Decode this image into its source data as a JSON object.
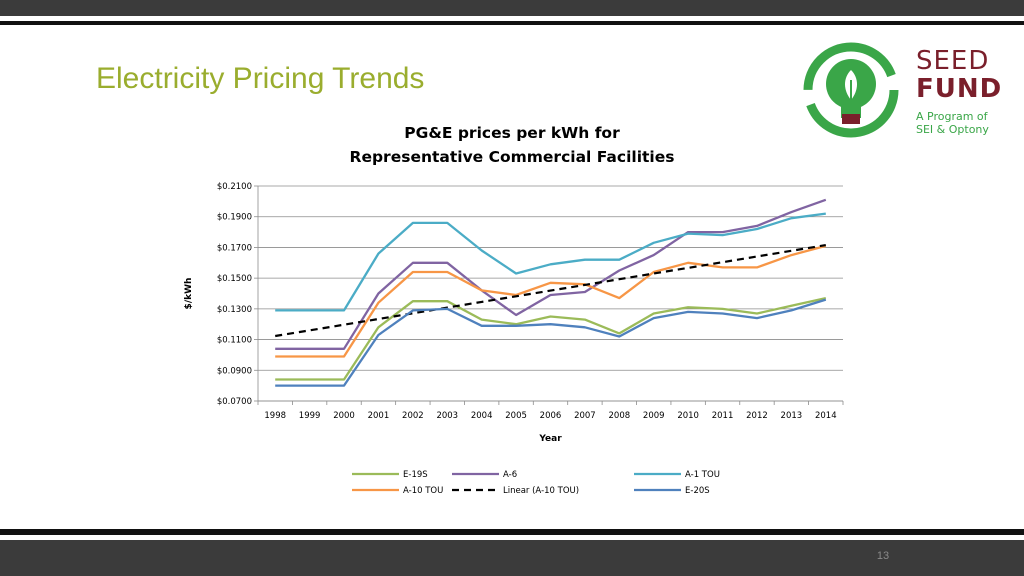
{
  "slide": {
    "title": "Electricity Pricing Trends",
    "number": "13"
  },
  "logo": {
    "line1": "SEED",
    "line2": "FUND",
    "sub1": "A Program of",
    "sub2": "SEI & Optony",
    "colors": {
      "ring": "#3aa648",
      "text": "#7a1f2b",
      "sub": "#3aa648"
    }
  },
  "chart_data": {
    "type": "line",
    "title_lines": [
      "PG&E prices per kWh for",
      "Representative Commercial Facilities"
    ],
    "xlabel": "Year",
    "ylabel": "$/kWh",
    "x": [
      "1998",
      "1999",
      "2000",
      "2001",
      "2002",
      "2003",
      "2004",
      "2005",
      "2006",
      "2007",
      "2008",
      "2009",
      "2010",
      "2011",
      "2012",
      "2013",
      "2014"
    ],
    "ylim": [
      0.07,
      0.21
    ],
    "yticks": [
      0.07,
      0.09,
      0.11,
      0.13,
      0.15,
      0.17,
      0.19,
      0.21
    ],
    "ytick_labels": [
      "$0.0700",
      "$0.0900",
      "$0.1100",
      "$0.1300",
      "$0.1500",
      "$0.1700",
      "$0.1900",
      "$0.2100"
    ],
    "grid": true,
    "legend_position": "bottom",
    "series": [
      {
        "name": "E-19S",
        "color": "#9bbb59",
        "dash": "",
        "values": [
          0.084,
          0.084,
          0.084,
          0.118,
          0.135,
          0.135,
          0.123,
          0.12,
          0.125,
          0.123,
          0.114,
          0.127,
          0.131,
          0.13,
          0.127,
          0.132,
          0.137
        ]
      },
      {
        "name": "A-6",
        "color": "#8064a2",
        "dash": "",
        "values": [
          0.104,
          0.104,
          0.104,
          0.14,
          0.16,
          0.16,
          0.142,
          0.126,
          0.139,
          0.141,
          0.155,
          0.165,
          0.18,
          0.18,
          0.184,
          0.193,
          0.201
        ]
      },
      {
        "name": "A-1 TOU",
        "color": "#4bacc6",
        "dash": "",
        "values": [
          0.129,
          0.129,
          0.129,
          0.166,
          0.186,
          0.186,
          0.168,
          0.153,
          0.159,
          0.162,
          0.162,
          0.173,
          0.179,
          0.178,
          0.182,
          0.189,
          0.192
        ]
      },
      {
        "name": "A-10 TOU",
        "color": "#f79646",
        "dash": "",
        "values": [
          0.099,
          0.099,
          0.099,
          0.134,
          0.154,
          0.154,
          0.142,
          0.139,
          0.147,
          0.146,
          0.137,
          0.154,
          0.16,
          0.157,
          0.157,
          0.165,
          0.171
        ]
      },
      {
        "name": "Linear (A-10 TOU)",
        "color": "#000000",
        "dash": "7,5",
        "values": [
          0.1123,
          0.116,
          0.1197,
          0.1234,
          0.1271,
          0.1308,
          0.1345,
          0.1382,
          0.1419,
          0.1456,
          0.1493,
          0.153,
          0.1567,
          0.1604,
          0.1641,
          0.1678,
          0.1715
        ]
      },
      {
        "name": "E-20S",
        "color": "#4f81bd",
        "dash": "",
        "values": [
          0.08,
          0.08,
          0.08,
          0.113,
          0.129,
          0.13,
          0.119,
          0.119,
          0.12,
          0.118,
          0.112,
          0.124,
          0.128,
          0.127,
          0.124,
          0.129,
          0.136
        ]
      }
    ]
  }
}
